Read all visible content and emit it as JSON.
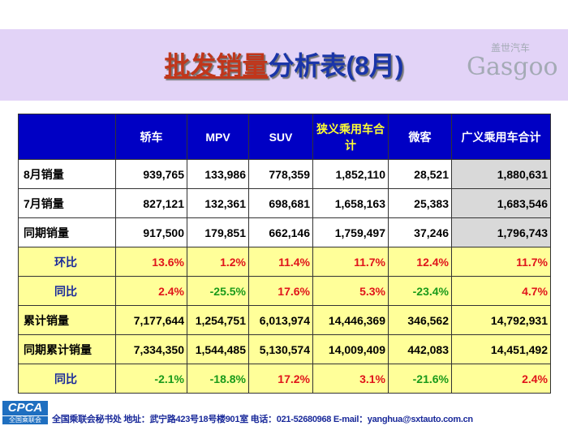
{
  "title": {
    "part1": "批发销量",
    "part2": "分析表(8月)"
  },
  "columns": [
    "",
    "轿车",
    "MPV",
    "SUV",
    "狭义乘用车合计",
    "微客",
    "广义乘用车合计"
  ],
  "rows": [
    {
      "label": "8月销量",
      "values": [
        "939,765",
        "133,986",
        "778,359",
        "1,852,110",
        "28,521",
        "1,880,631"
      ]
    },
    {
      "label": "7月销量",
      "values": [
        "827,121",
        "132,361",
        "698,681",
        "1,658,163",
        "25,383",
        "1,683,546"
      ]
    },
    {
      "label": "同期销量",
      "values": [
        "917,500",
        "179,851",
        "662,146",
        "1,759,497",
        "37,246",
        "1,796,743"
      ]
    },
    {
      "label": "环比",
      "values": [
        "13.6%",
        "1.2%",
        "11.4%",
        "11.7%",
        "12.4%",
        "11.7%"
      ]
    },
    {
      "label": "同比",
      "values": [
        "2.4%",
        "-25.5%",
        "17.6%",
        "5.3%",
        "-23.4%",
        "4.7%"
      ]
    },
    {
      "label": "累计销量",
      "values": [
        "7,177,644",
        "1,254,751",
        "6,013,974",
        "14,446,369",
        "346,562",
        "14,792,931"
      ]
    },
    {
      "label": "同期累计销量",
      "values": [
        "7,334,350",
        "1,544,485",
        "5,130,574",
        "14,009,409",
        "442,083",
        "14,451,492"
      ]
    },
    {
      "label": "同比",
      "values": [
        "-2.1%",
        "-18.8%",
        "17.2%",
        "3.1%",
        "-21.6%",
        "2.4%"
      ]
    }
  ],
  "footer": "全国乘联会秘书处  地址：武宁路423号18号楼901室    电话：021-52680968   E-mail：yanghua@sxtauto.com.cn",
  "logo": {
    "name": "CPCA",
    "sub": "全国乘联会"
  },
  "watermark": {
    "brand": "Gasgoo",
    "sub": "盖世汽车"
  },
  "colors": {
    "header": "#0000c4",
    "highlight": "#ffff99",
    "positive": "#e0141a",
    "negative": "#1a9a1a"
  }
}
